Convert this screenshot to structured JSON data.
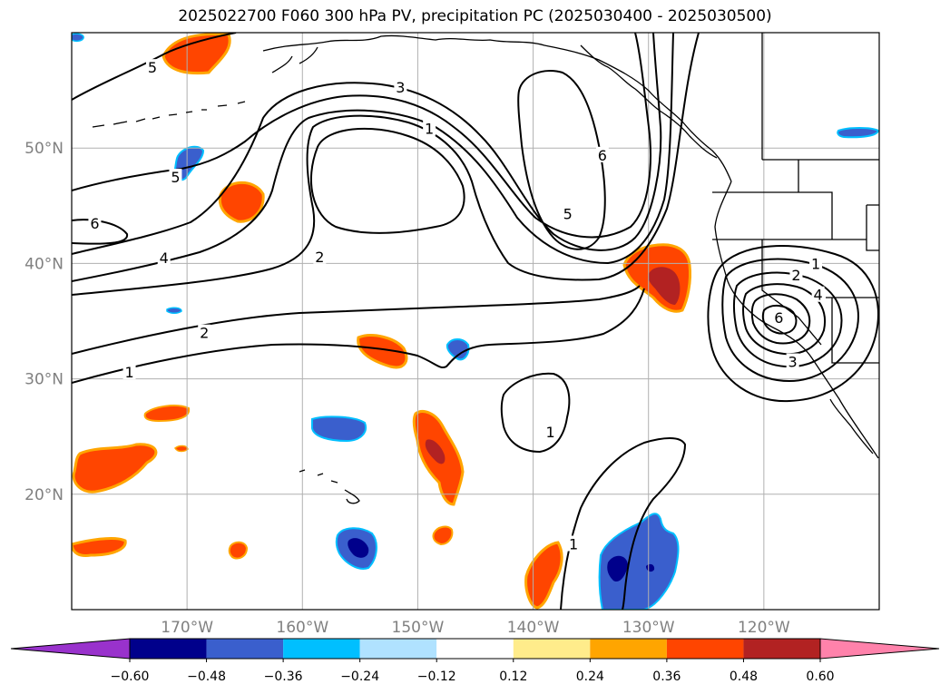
{
  "title": "2025022700 F060 300 hPa PV, precipitation PC (2025030400 - 2025030500)",
  "chart_data": {
    "type": "heatmap",
    "title": "2025022700 F060 300 hPa PV, precipitation PC (2025030400 - 2025030500)",
    "projection": "PlateCarree",
    "extent": {
      "lon": [
        -180,
        -110
      ],
      "lat": [
        10,
        60
      ]
    },
    "grid": true,
    "x_ticks": [
      {
        "value": -170,
        "label": "170°W"
      },
      {
        "value": -160,
        "label": "160°W"
      },
      {
        "value": -150,
        "label": "150°W"
      },
      {
        "value": -140,
        "label": "140°W"
      },
      {
        "value": -130,
        "label": "130°W"
      },
      {
        "value": -120,
        "label": "120°W"
      }
    ],
    "y_ticks": [
      {
        "value": 20,
        "label": "20°N"
      },
      {
        "value": 30,
        "label": "30°N"
      },
      {
        "value": 40,
        "label": "40°N"
      },
      {
        "value": 50,
        "label": "50°N"
      }
    ],
    "colorbar": {
      "orientation": "horizontal",
      "extend": "both",
      "boundaries": [
        -0.6,
        -0.48,
        -0.36,
        -0.24,
        -0.12,
        0.12,
        0.24,
        0.36,
        0.48,
        0.6
      ],
      "tick_labels": [
        "−0.60",
        "−0.48",
        "−0.36",
        "−0.24",
        "−0.12",
        "0.12",
        "0.24",
        "0.36",
        "0.48",
        "0.60"
      ],
      "colors": [
        "#9932cc",
        "#00008b",
        "#3a5fcd",
        "#00bfff",
        "#b0e2ff",
        "#ffffff",
        "#ffec8b",
        "#ffa500",
        "#ff4500",
        "#b22222",
        "#ff82ab"
      ]
    },
    "pv_contours": {
      "levels": [
        1,
        2,
        3,
        4,
        5,
        6
      ],
      "labels": [
        {
          "text": "5",
          "lon": -173,
          "lat": 57
        },
        {
          "text": "5",
          "lon": -171,
          "lat": 47.5
        },
        {
          "text": "6",
          "lon": -178,
          "lat": 43.5
        },
        {
          "text": "4",
          "lon": -172,
          "lat": 40.5
        },
        {
          "text": "3",
          "lon": -151.5,
          "lat": 55.3
        },
        {
          "text": "1",
          "lon": -149,
          "lat": 51.7
        },
        {
          "text": "2",
          "lon": -158.5,
          "lat": 40.6
        },
        {
          "text": "2",
          "lon": -168.5,
          "lat": 34
        },
        {
          "text": "1",
          "lon": -175,
          "lat": 30.6
        },
        {
          "text": "6",
          "lon": -134,
          "lat": 49.4
        },
        {
          "text": "5",
          "lon": -137,
          "lat": 44.3
        },
        {
          "text": "1",
          "lon": -138.5,
          "lat": 25.4
        },
        {
          "text": "1",
          "lon": -136.5,
          "lat": 15.7
        },
        {
          "text": "1",
          "lon": -115.5,
          "lat": 40
        },
        {
          "text": "2",
          "lon": -117.2,
          "lat": 39
        },
        {
          "text": "4",
          "lon": -115.3,
          "lat": 37.3
        },
        {
          "text": "6",
          "lon": -118.7,
          "lat": 35.3
        },
        {
          "text": "3",
          "lon": -117.5,
          "lat": 31.5
        }
      ]
    },
    "precip_areas": [
      {
        "name": "positive",
        "lon": -169,
        "lat": 57
      },
      {
        "name": "positive",
        "lon": -165,
        "lat": 45.5
      },
      {
        "name": "positive",
        "lon": -171,
        "lat": 26.5
      },
      {
        "name": "positive",
        "lon": -175.5,
        "lat": 22.5
      },
      {
        "name": "positive",
        "lon": -177,
        "lat": 15.2
      },
      {
        "name": "positive",
        "lon": -165.5,
        "lat": 15
      },
      {
        "name": "positive",
        "lon": -152,
        "lat": 32.3
      },
      {
        "name": "positive",
        "lon": -148,
        "lat": 22.5
      },
      {
        "name": "positive",
        "lon": -146,
        "lat": 16.5
      },
      {
        "name": "positive",
        "lon": -140.5,
        "lat": 13
      },
      {
        "name": "positive",
        "lon": -128,
        "lat": 39
      },
      {
        "name": "negative",
        "lon": -170,
        "lat": 48.5
      },
      {
        "name": "negative",
        "lon": -158.5,
        "lat": 25.7
      },
      {
        "name": "negative",
        "lon": -155.5,
        "lat": 15.5
      },
      {
        "name": "negative",
        "lon": -146,
        "lat": 32.5
      },
      {
        "name": "negative",
        "lon": -131,
        "lat": 13.8
      },
      {
        "name": "negative",
        "lon": -115.5,
        "lat": 51.4
      },
      {
        "name": "negative",
        "lon": -179.5,
        "lat": 59.7
      },
      {
        "name": "negative",
        "lon": -169,
        "lat": 35.8
      }
    ]
  }
}
